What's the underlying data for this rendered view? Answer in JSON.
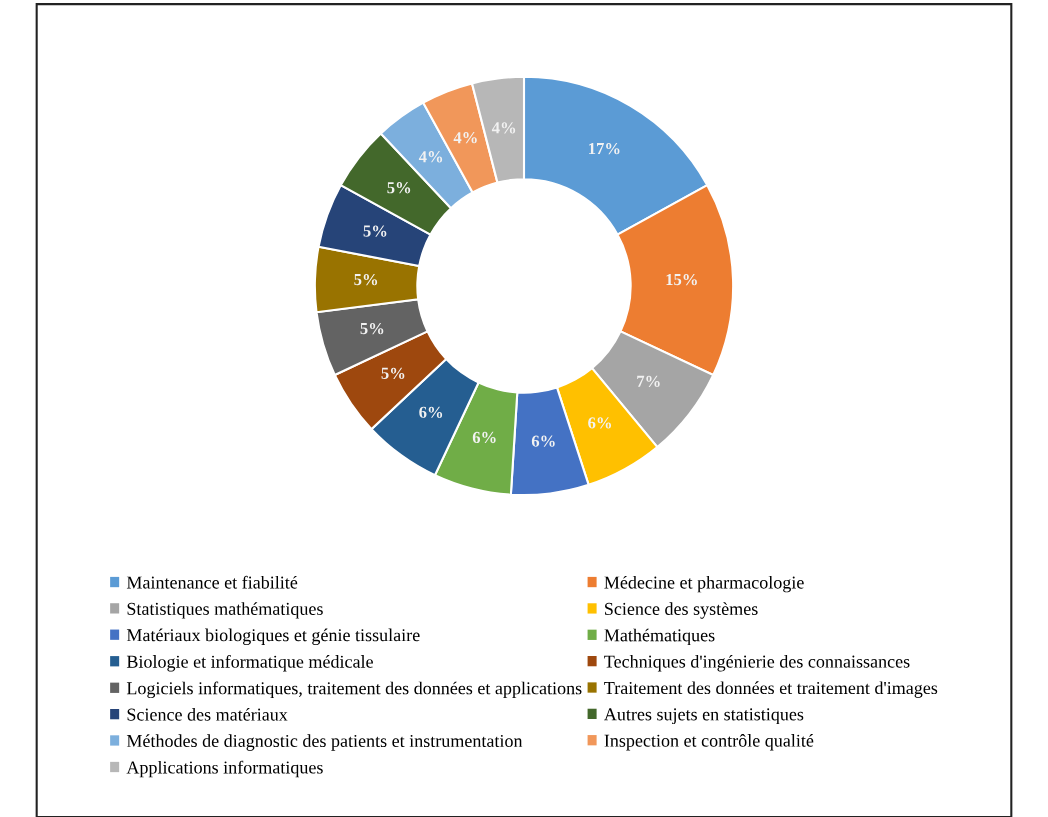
{
  "chart_data": {
    "type": "donut",
    "categories": [
      "Maintenance et fiabilité",
      "Médecine et pharmacologie",
      "Statistiques mathématiques",
      "Science des systèmes",
      "Matériaux biologiques et génie tissulaire",
      "Mathématiques",
      "Biologie et informatique médicale",
      "Techniques d'ingénierie des connaissances",
      "Logiciels informatiques, traitement des données et applications",
      "Traitement des données et traitement d'images",
      "Science des matériaux",
      "Autres sujets en statistiques",
      "Méthodes de diagnostic des patients et instrumentation",
      "Inspection et contrôle qualité",
      "Applications informatiques"
    ],
    "values": [
      17,
      15,
      7,
      6,
      6,
      6,
      6,
      5,
      5,
      5,
      5,
      5,
      4,
      4,
      4
    ],
    "value_labels": [
      "17%",
      "15%",
      "7%",
      "6%",
      "6%",
      "6%",
      "6%",
      "5%",
      "5%",
      "5%",
      "5%",
      "5%",
      "4%",
      "4%",
      "4%"
    ],
    "colors": [
      "#5b9bd5",
      "#ed7d31",
      "#a5a5a5",
      "#ffc000",
      "#4472c4",
      "#70ad47",
      "#255e91",
      "#9e480e",
      "#636363",
      "#997300",
      "#264478",
      "#43682b",
      "#7cafdd",
      "#f1975a",
      "#b7b7b7"
    ],
    "legend": "bottom"
  }
}
